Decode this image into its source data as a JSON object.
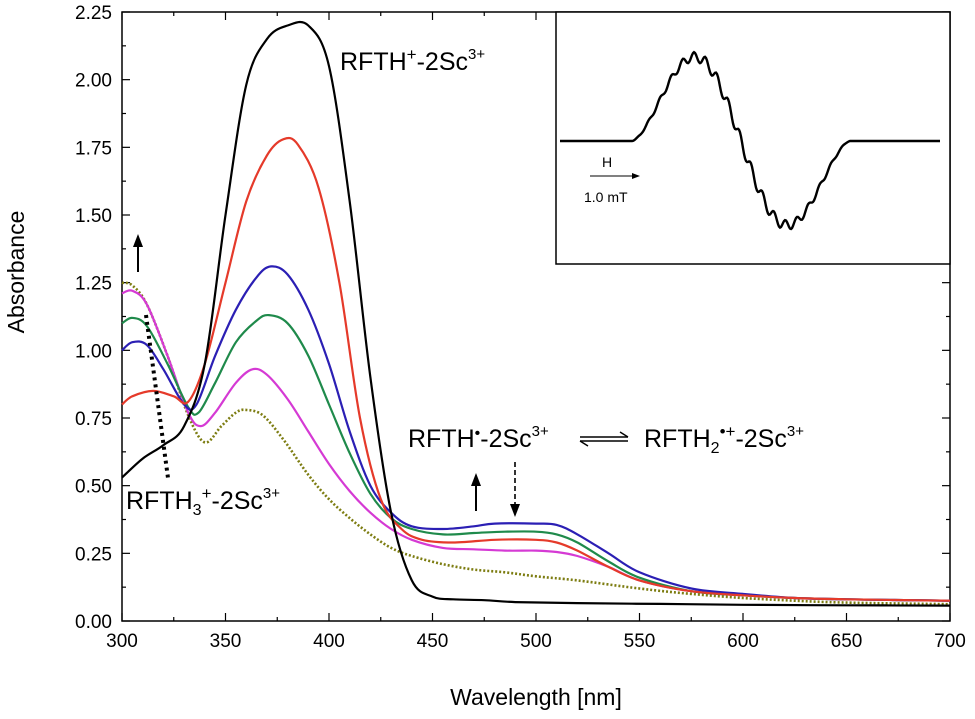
{
  "chart_data": {
    "type": "line",
    "xlabel": "Wavelength [nm]",
    "ylabel": "Absorbance",
    "xlim": [
      300,
      700
    ],
    "ylim": [
      0,
      2.25
    ],
    "xticks": [
      "300",
      "350",
      "400",
      "450",
      "500",
      "550",
      "600",
      "650",
      "700"
    ],
    "yticks": [
      "0.00",
      "0.25",
      "0.50",
      "0.75",
      "1.00",
      "1.25",
      "1.50",
      "1.75",
      "2.00",
      "2.25"
    ],
    "series": [
      {
        "name": "RFTH+-2Sc3+",
        "color": "#000000",
        "style": "solid",
        "points": [
          [
            300,
            0.53
          ],
          [
            310,
            0.6
          ],
          [
            320,
            0.65
          ],
          [
            330,
            0.72
          ],
          [
            340,
            0.95
          ],
          [
            350,
            1.5
          ],
          [
            360,
            1.98
          ],
          [
            370,
            2.15
          ],
          [
            380,
            2.2
          ],
          [
            390,
            2.2
          ],
          [
            400,
            2.05
          ],
          [
            410,
            1.55
          ],
          [
            420,
            0.9
          ],
          [
            430,
            0.4
          ],
          [
            440,
            0.15
          ],
          [
            450,
            0.09
          ],
          [
            460,
            0.08
          ],
          [
            475,
            0.077
          ],
          [
            490,
            0.07
          ],
          [
            520,
            0.066
          ],
          [
            560,
            0.063
          ],
          [
            600,
            0.06
          ],
          [
            650,
            0.058
          ],
          [
            700,
            0.057
          ]
        ]
      },
      {
        "name": "red",
        "color": "#e53a2a",
        "style": "solid",
        "points": [
          [
            300,
            0.8
          ],
          [
            305,
            0.83
          ],
          [
            315,
            0.85
          ],
          [
            325,
            0.83
          ],
          [
            332,
            0.81
          ],
          [
            340,
            0.95
          ],
          [
            350,
            1.25
          ],
          [
            360,
            1.55
          ],
          [
            370,
            1.72
          ],
          [
            378,
            1.78
          ],
          [
            385,
            1.76
          ],
          [
            395,
            1.6
          ],
          [
            405,
            1.25
          ],
          [
            415,
            0.75
          ],
          [
            425,
            0.45
          ],
          [
            435,
            0.34
          ],
          [
            445,
            0.3
          ],
          [
            460,
            0.29
          ],
          [
            480,
            0.3
          ],
          [
            500,
            0.3
          ],
          [
            510,
            0.29
          ],
          [
            520,
            0.26
          ],
          [
            535,
            0.2
          ],
          [
            550,
            0.15
          ],
          [
            575,
            0.11
          ],
          [
            600,
            0.095
          ],
          [
            625,
            0.085
          ],
          [
            650,
            0.08
          ],
          [
            700,
            0.075
          ]
        ]
      },
      {
        "name": "blue",
        "color": "#2b1fb4",
        "style": "solid",
        "points": [
          [
            300,
            1.0
          ],
          [
            305,
            1.03
          ],
          [
            312,
            1.02
          ],
          [
            320,
            0.93
          ],
          [
            330,
            0.8
          ],
          [
            336,
            0.8
          ],
          [
            345,
            0.98
          ],
          [
            355,
            1.15
          ],
          [
            365,
            1.27
          ],
          [
            372,
            1.31
          ],
          [
            380,
            1.28
          ],
          [
            390,
            1.15
          ],
          [
            400,
            0.95
          ],
          [
            410,
            0.7
          ],
          [
            420,
            0.5
          ],
          [
            430,
            0.4
          ],
          [
            440,
            0.35
          ],
          [
            455,
            0.34
          ],
          [
            470,
            0.35
          ],
          [
            480,
            0.36
          ],
          [
            500,
            0.36
          ],
          [
            510,
            0.355
          ],
          [
            520,
            0.32
          ],
          [
            535,
            0.25
          ],
          [
            550,
            0.18
          ],
          [
            575,
            0.12
          ],
          [
            600,
            0.1
          ],
          [
            625,
            0.085
          ],
          [
            650,
            0.08
          ],
          [
            700,
            0.075
          ]
        ]
      },
      {
        "name": "green",
        "color": "#1f8a4b",
        "style": "solid",
        "points": [
          [
            300,
            1.1
          ],
          [
            305,
            1.12
          ],
          [
            312,
            1.09
          ],
          [
            322,
            0.95
          ],
          [
            332,
            0.79
          ],
          [
            337,
            0.77
          ],
          [
            345,
            0.88
          ],
          [
            355,
            1.03
          ],
          [
            365,
            1.11
          ],
          [
            371,
            1.13
          ],
          [
            380,
            1.1
          ],
          [
            390,
            0.98
          ],
          [
            400,
            0.8
          ],
          [
            410,
            0.62
          ],
          [
            420,
            0.47
          ],
          [
            430,
            0.38
          ],
          [
            440,
            0.34
          ],
          [
            455,
            0.32
          ],
          [
            470,
            0.325
          ],
          [
            485,
            0.33
          ],
          [
            500,
            0.33
          ],
          [
            510,
            0.32
          ],
          [
            520,
            0.29
          ],
          [
            535,
            0.22
          ],
          [
            550,
            0.16
          ],
          [
            575,
            0.11
          ],
          [
            600,
            0.095
          ],
          [
            625,
            0.085
          ],
          [
            650,
            0.08
          ],
          [
            700,
            0.075
          ]
        ]
      },
      {
        "name": "magenta",
        "color": "#d53ad4",
        "style": "solid",
        "points": [
          [
            300,
            1.21
          ],
          [
            305,
            1.22
          ],
          [
            312,
            1.17
          ],
          [
            322,
            0.98
          ],
          [
            332,
            0.77
          ],
          [
            338,
            0.72
          ],
          [
            345,
            0.77
          ],
          [
            355,
            0.88
          ],
          [
            363,
            0.93
          ],
          [
            370,
            0.91
          ],
          [
            380,
            0.82
          ],
          [
            390,
            0.7
          ],
          [
            400,
            0.58
          ],
          [
            410,
            0.48
          ],
          [
            420,
            0.4
          ],
          [
            430,
            0.34
          ],
          [
            440,
            0.3
          ],
          [
            455,
            0.27
          ],
          [
            470,
            0.265
          ],
          [
            485,
            0.26
          ],
          [
            500,
            0.26
          ],
          [
            510,
            0.255
          ],
          [
            520,
            0.24
          ],
          [
            535,
            0.2
          ],
          [
            550,
            0.15
          ],
          [
            575,
            0.11
          ],
          [
            600,
            0.095
          ],
          [
            625,
            0.085
          ],
          [
            650,
            0.08
          ],
          [
            700,
            0.075
          ]
        ]
      },
      {
        "name": "olive-dotted",
        "color": "#7d7d12",
        "style": "dotted",
        "points": [
          [
            300,
            1.25
          ],
          [
            305,
            1.24
          ],
          [
            312,
            1.17
          ],
          [
            322,
            0.98
          ],
          [
            332,
            0.76
          ],
          [
            340,
            0.66
          ],
          [
            348,
            0.72
          ],
          [
            355,
            0.77
          ],
          [
            360,
            0.78
          ],
          [
            368,
            0.76
          ],
          [
            378,
            0.67
          ],
          [
            390,
            0.54
          ],
          [
            400,
            0.45
          ],
          [
            410,
            0.38
          ],
          [
            420,
            0.32
          ],
          [
            430,
            0.27
          ],
          [
            440,
            0.24
          ],
          [
            455,
            0.21
          ],
          [
            470,
            0.19
          ],
          [
            485,
            0.18
          ],
          [
            500,
            0.165
          ],
          [
            520,
            0.15
          ],
          [
            550,
            0.12
          ],
          [
            575,
            0.1
          ],
          [
            600,
            0.085
          ],
          [
            625,
            0.075
          ],
          [
            650,
            0.068
          ],
          [
            700,
            0.062
          ]
        ]
      }
    ]
  },
  "annotations": {
    "rfth_main": "RFTH",
    "rfth_main_sup": "+",
    "rfth_main_rest": "-2Sc",
    "rfth_main_charge": "3+",
    "rfth3_base": "RFTH",
    "rfth3_sub": "3",
    "rfth3_sup": "+",
    "rfth3_rest": "-2Sc",
    "rfth3_charge": "3+",
    "radical_left": "RFTH",
    "radical_dot": "•",
    "radical_left_rest": "-2Sc",
    "radical_left_charge": "3+",
    "radical_right_base": "RFTH",
    "radical_right_sub": "2",
    "radical_right_sup": "•+",
    "radical_right_rest": "-2Sc",
    "radical_right_charge": "3+"
  },
  "inset": {
    "field_label": "H",
    "scale_label": "1.0 mT"
  }
}
